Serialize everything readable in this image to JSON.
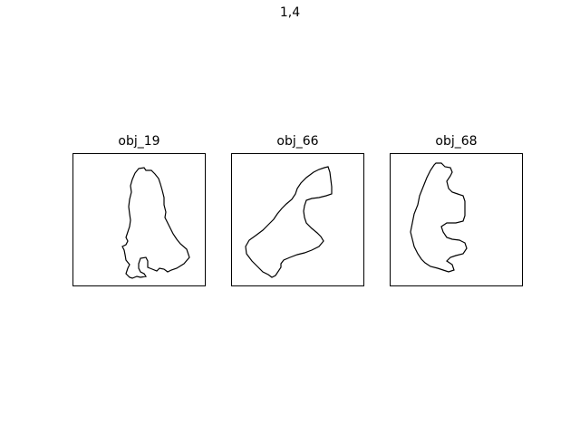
{
  "figure": {
    "title": "1,4"
  },
  "panels": [
    {
      "title": "obj_19"
    },
    {
      "title": "obj_66"
    },
    {
      "title": "obj_68"
    }
  ],
  "colors": {
    "outline": "#000000",
    "background": "#ffffff"
  }
}
